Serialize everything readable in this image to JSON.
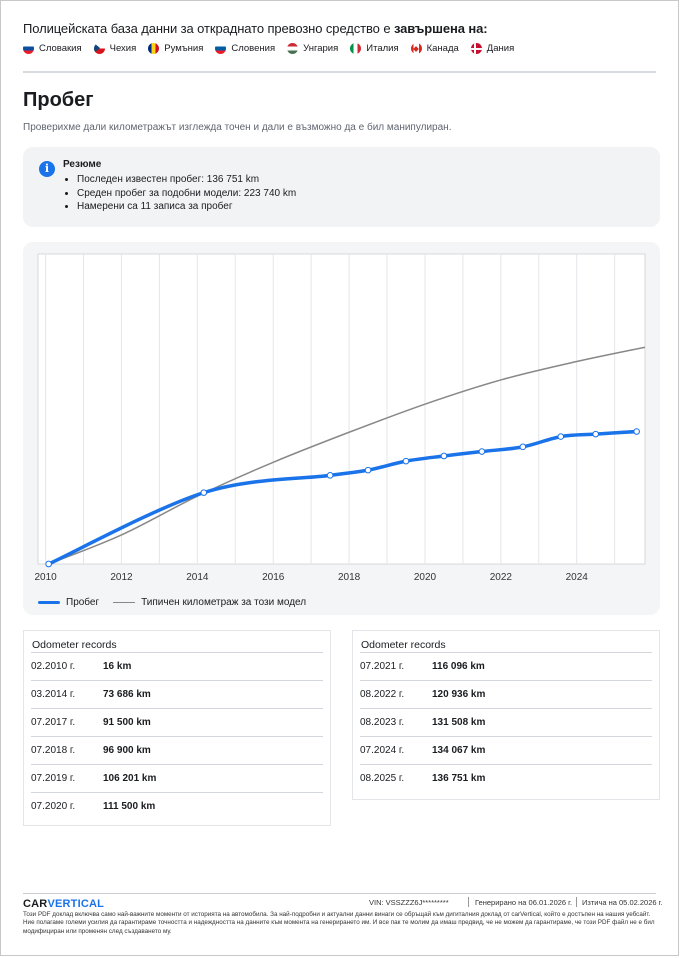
{
  "header": {
    "db_title_prefix": "Полицейската база данни за откраднато превозно средство е",
    "db_title_bold": "завършена на:",
    "countries": [
      "Словакия",
      "Чехия",
      "Румъния",
      "Словения",
      "Унгария",
      "Италия",
      "Канада",
      "Дания"
    ]
  },
  "section": {
    "title": "Пробег",
    "subtitle": "Проверихме дали километражът изглежда точен и дали е възможно да е бил манипулиран."
  },
  "summary": {
    "icon": "i",
    "title": "Резюме",
    "items": [
      "Последен известен пробег: 136 751 km",
      "Среден пробег за подобни модели: 223 740 km",
      "Намерени са 11 записа за пробег"
    ]
  },
  "chart_data": {
    "type": "line",
    "title": "",
    "xlabel": "",
    "ylabel": "",
    "xlim": [
      2009.8,
      2025.8
    ],
    "ylim": [
      0,
      320000
    ],
    "x_ticks": [
      "2010",
      "2012",
      "2014",
      "2016",
      "2018",
      "2020",
      "2022",
      "2024"
    ],
    "grid": "vertical",
    "legend_position": "bottom-left",
    "series": [
      {
        "name": "Пробег",
        "color": "#1a73e8",
        "dashed_markers": true,
        "points": [
          {
            "x": 2010.08,
            "y": 16
          },
          {
            "x": 2014.17,
            "y": 73686
          },
          {
            "x": 2017.5,
            "y": 91500
          },
          {
            "x": 2018.5,
            "y": 96900
          },
          {
            "x": 2019.5,
            "y": 106201
          },
          {
            "x": 2020.5,
            "y": 111500
          },
          {
            "x": 2021.5,
            "y": 116096
          },
          {
            "x": 2022.58,
            "y": 120936
          },
          {
            "x": 2023.58,
            "y": 131508
          },
          {
            "x": 2024.5,
            "y": 134067
          },
          {
            "x": 2025.58,
            "y": 136751
          }
        ]
      },
      {
        "name": "Типичен километраж за този модел",
        "color": "#888888",
        "points": [
          {
            "x": 2010.08,
            "y": 0
          },
          {
            "x": 2012,
            "y": 30000
          },
          {
            "x": 2014,
            "y": 70000
          },
          {
            "x": 2016,
            "y": 105000
          },
          {
            "x": 2018,
            "y": 136000
          },
          {
            "x": 2020,
            "y": 165000
          },
          {
            "x": 2022,
            "y": 190000
          },
          {
            "x": 2024,
            "y": 209000
          },
          {
            "x": 2025.8,
            "y": 223740
          }
        ]
      }
    ]
  },
  "odometer": {
    "title": "Odometer records",
    "left": [
      {
        "date": "02.2010 г.",
        "km": "16 km"
      },
      {
        "date": "03.2014 г.",
        "km": "73 686 km"
      },
      {
        "date": "07.2017 г.",
        "km": "91 500 km"
      },
      {
        "date": "07.2018 г.",
        "km": "96 900 km"
      },
      {
        "date": "07.2019 г.",
        "km": "106 201 km"
      },
      {
        "date": "07.2020 г.",
        "km": "111 500 km"
      }
    ],
    "right": [
      {
        "date": "07.2021 г.",
        "km": "116 096 km"
      },
      {
        "date": "08.2022 г.",
        "km": "120 936 km"
      },
      {
        "date": "08.2023 г.",
        "km": "131 508 km"
      },
      {
        "date": "07.2024 г.",
        "km": "134 067 km"
      },
      {
        "date": "08.2025 г.",
        "km": "136 751 km"
      }
    ]
  },
  "footer": {
    "logo_a": "CAR",
    "logo_b": "VERTICAL",
    "vin": "VIN: VSSZZZ6J*********",
    "generated": "Генерирано на  06.01.2026 г.",
    "expires": "Изтича на  05.02.2026 г.",
    "disclaimer": "Този PDF доклад включва само най-важните моменти от историята на автомобила. За най-подробни и актуални данни винаги се обръщай към дигиталния доклад от carVertical, който е достъпен на нашия уебсайт. Ние полагаме големи усилия да гарантираме точността и надеждността на данните към момента на генерирането им. И все пак те молим да имаш предвид, че не можем да гарантираме, че този PDF файл не е бил модифициран или променян след създаването му."
  }
}
